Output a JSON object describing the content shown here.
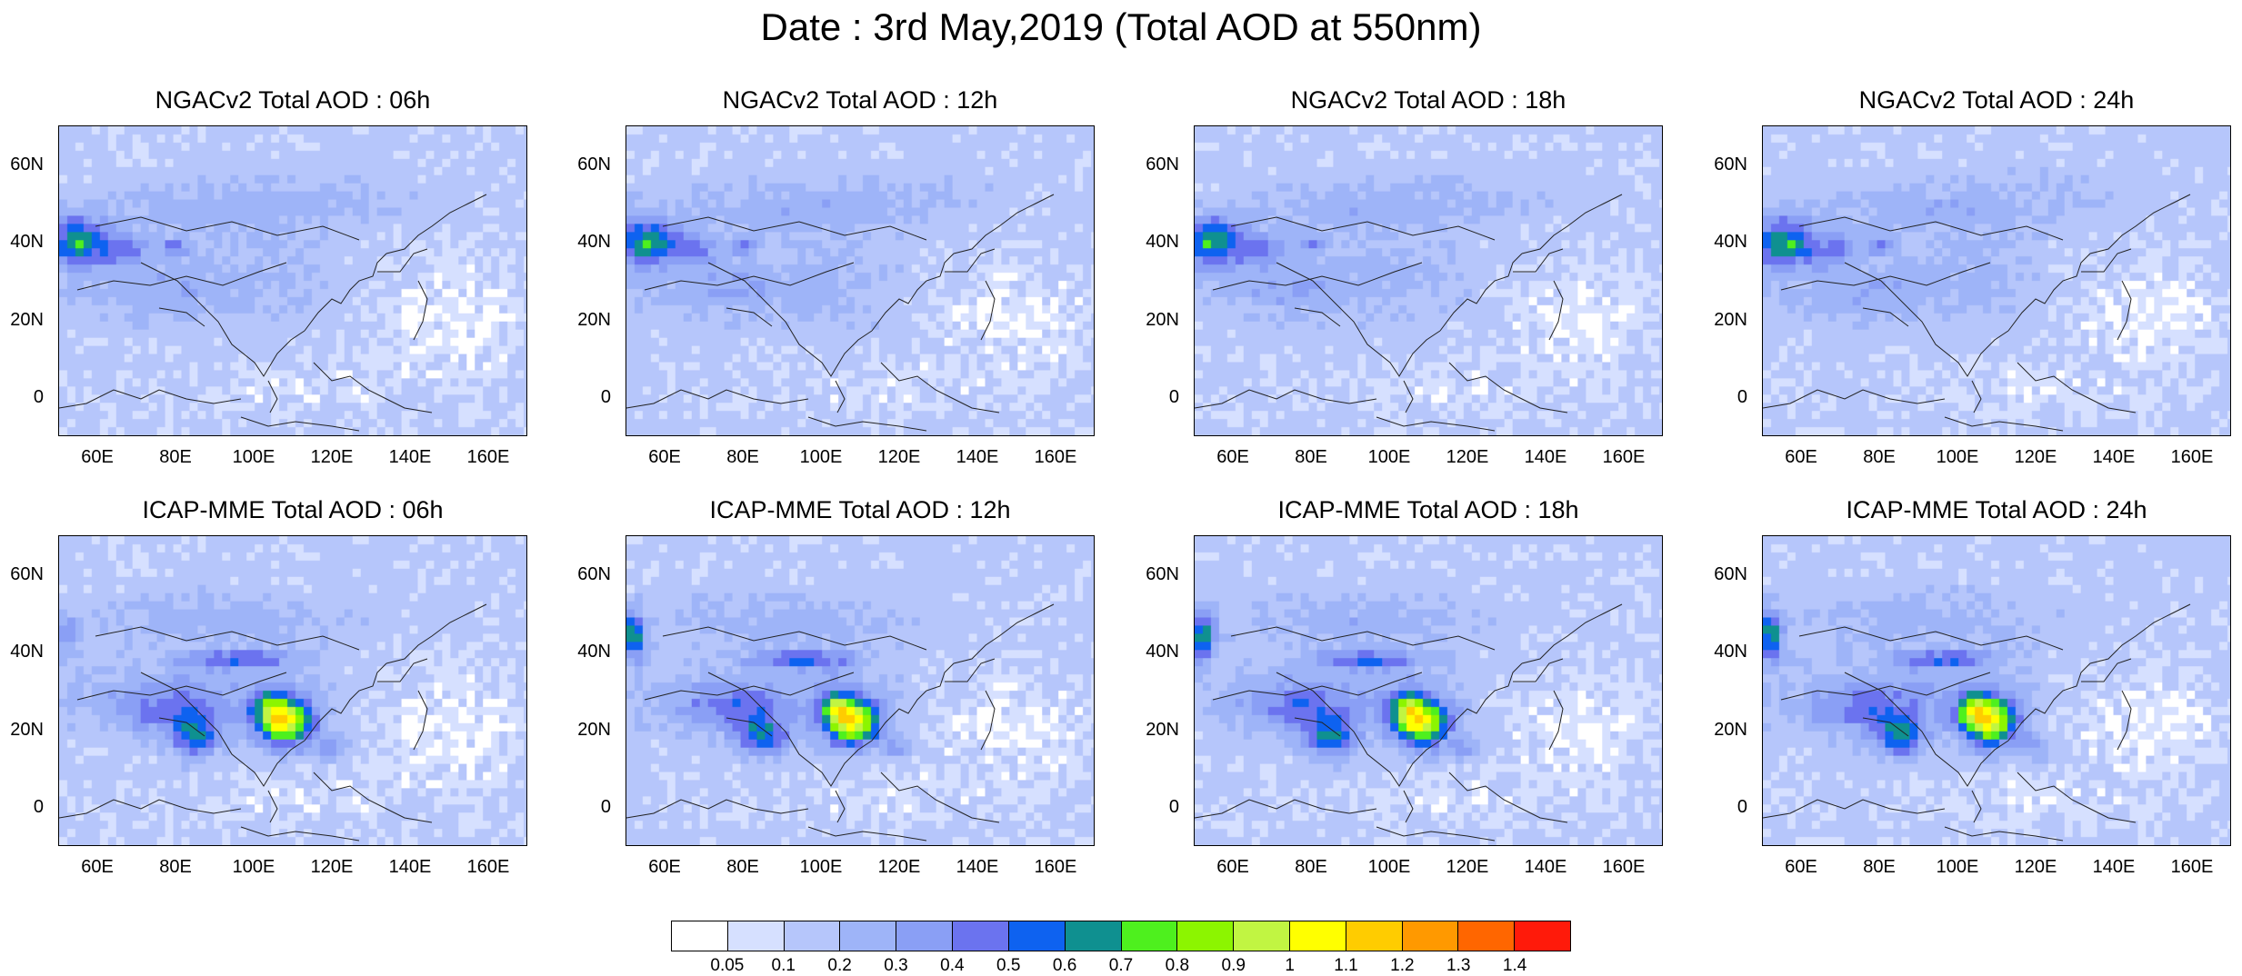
{
  "title": "Date : 3rd May,2019 (Total AOD at 550nm)",
  "panels": [
    {
      "row": 0,
      "col": 0,
      "title": "NGACv2 Total AOD : 06h",
      "model": "NGACv2",
      "lead": "06h"
    },
    {
      "row": 0,
      "col": 1,
      "title": "NGACv2 Total AOD : 12h",
      "model": "NGACv2",
      "lead": "12h"
    },
    {
      "row": 0,
      "col": 2,
      "title": "NGACv2 Total AOD : 18h",
      "model": "NGACv2",
      "lead": "18h"
    },
    {
      "row": 0,
      "col": 3,
      "title": "NGACv2 Total AOD : 24h",
      "model": "NGACv2",
      "lead": "24h"
    },
    {
      "row": 1,
      "col": 0,
      "title": "ICAP-MME Total AOD : 06h",
      "model": "ICAP-MME",
      "lead": "06h"
    },
    {
      "row": 1,
      "col": 1,
      "title": "ICAP-MME Total AOD : 12h",
      "model": "ICAP-MME",
      "lead": "12h"
    },
    {
      "row": 1,
      "col": 2,
      "title": "ICAP-MME Total AOD : 18h",
      "model": "ICAP-MME",
      "lead": "18h"
    },
    {
      "row": 1,
      "col": 3,
      "title": "ICAP-MME Total AOD : 24h",
      "model": "ICAP-MME",
      "lead": "24h"
    }
  ],
  "map_axes": {
    "lat_ticks": [
      {
        "label": "60N",
        "value": 60
      },
      {
        "label": "40N",
        "value": 40
      },
      {
        "label": "20N",
        "value": 20
      },
      {
        "label": "0",
        "value": 0
      }
    ],
    "lon_ticks": [
      {
        "label": "60E",
        "value": 60
      },
      {
        "label": "80E",
        "value": 80
      },
      {
        "label": "100E",
        "value": 100
      },
      {
        "label": "120E",
        "value": 120
      },
      {
        "label": "140E",
        "value": 140
      },
      {
        "label": "160E",
        "value": 160
      }
    ],
    "lon_range": [
      50,
      170
    ],
    "lat_range": [
      -10,
      70
    ]
  },
  "colorbar": {
    "labels": [
      "0.05",
      "0.1",
      "0.2",
      "0.3",
      "0.4",
      "0.5",
      "0.6",
      "0.7",
      "0.8",
      "0.9",
      "1",
      "1.1",
      "1.2",
      "1.3",
      "1.4"
    ],
    "colors": [
      "#ffffff",
      "#d6e0ff",
      "#b6c6fb",
      "#9eb4f8",
      "#8a9ff5",
      "#6b73ef",
      "#0e62f0",
      "#0f9090",
      "#4ef01e",
      "#8cf500",
      "#c1f542",
      "#ffff00",
      "#ffcc00",
      "#ff9900",
      "#ff6600",
      "#ff1a0a"
    ]
  }
}
